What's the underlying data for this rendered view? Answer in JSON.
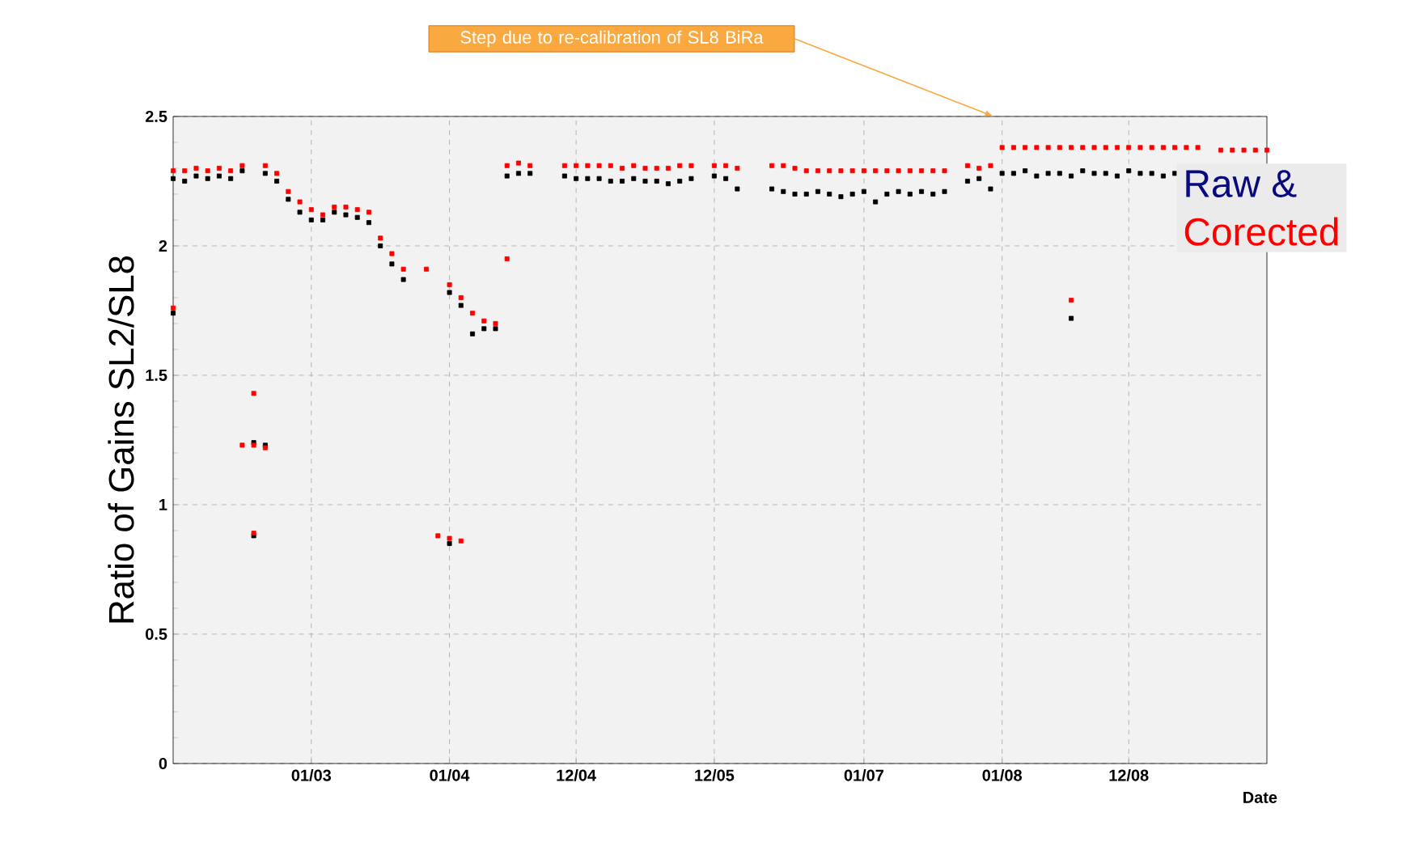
{
  "chart_data": {
    "type": "scatter",
    "ylabel": "Ratio of Gains SL2/SL8",
    "xlabel": "Date",
    "annotations": [
      "Step due to re-calibration of SL8 BiRa",
      "Raw &",
      "Corected"
    ],
    "xlim": [
      "2002-01",
      "2009-12"
    ],
    "ylim": [
      0,
      2.5
    ],
    "xticks": [
      {
        "value": "2003-01",
        "label": "01/03"
      },
      {
        "value": "2004-01",
        "label": "01/04"
      },
      {
        "value": "2004-12",
        "label": "12/04"
      },
      {
        "value": "2005-12",
        "label": "12/05"
      },
      {
        "value": "2007-01",
        "label": "01/07"
      },
      {
        "value": "2008-01",
        "label": "01/08"
      },
      {
        "value": "2008-12",
        "label": "12/08"
      }
    ],
    "yticks": [
      0,
      0.5,
      1,
      1.5,
      2,
      2.5
    ],
    "grid": true,
    "marker": "square",
    "series": [
      {
        "color": "#000000",
        "x": [
          "2002-01",
          "2002-02",
          "2002-03",
          "2002-04",
          "2002-05",
          "2002-06",
          "2002-07",
          "2002-09",
          "2002-10",
          "2002-11",
          "2002-12",
          "2003-01",
          "2003-02",
          "2003-03",
          "2003-04",
          "2003-05",
          "2003-06",
          "2003-07",
          "2003-08",
          "2003-09",
          "2004-01",
          "2004-02",
          "2004-03",
          "2004-04",
          "2004-05",
          "2004-06",
          "2004-07",
          "2004-08",
          "2004-11",
          "2004-12",
          "2005-01",
          "2005-02",
          "2005-03",
          "2005-04",
          "2005-05",
          "2005-06",
          "2005-07",
          "2005-08",
          "2005-09",
          "2005-10",
          "2005-12",
          "2006-01",
          "2006-02",
          "2006-05",
          "2006-06",
          "2006-07",
          "2006-08",
          "2006-09",
          "2006-10",
          "2006-11",
          "2006-12",
          "2007-01",
          "2007-02",
          "2007-03",
          "2007-04",
          "2007-05",
          "2007-06",
          "2007-07",
          "2007-08",
          "2007-10",
          "2007-11",
          "2007-12",
          "2008-01",
          "2008-02",
          "2008-03",
          "2008-04",
          "2008-05",
          "2008-06",
          "2008-07",
          "2008-08",
          "2008-09",
          "2008-10",
          "2008-11",
          "2008-12",
          "2009-01",
          "2009-02",
          "2009-03",
          "2009-04",
          "2002-01",
          "2002-08",
          "2002-08",
          "2002-09",
          "2004-01",
          "2008-07"
        ],
        "values": [
          2.26,
          2.25,
          2.27,
          2.26,
          2.27,
          2.26,
          2.29,
          2.28,
          2.25,
          2.18,
          2.13,
          2.1,
          2.1,
          2.13,
          2.12,
          2.11,
          2.09,
          2.0,
          1.93,
          1.87,
          1.82,
          1.77,
          1.66,
          1.68,
          1.68,
          2.27,
          2.28,
          2.28,
          2.27,
          2.26,
          2.26,
          2.26,
          2.25,
          2.25,
          2.26,
          2.25,
          2.25,
          2.24,
          2.25,
          2.26,
          2.27,
          2.26,
          2.22,
          2.22,
          2.21,
          2.2,
          2.2,
          2.21,
          2.2,
          2.19,
          2.2,
          2.21,
          2.17,
          2.2,
          2.21,
          2.2,
          2.21,
          2.2,
          2.21,
          2.25,
          2.26,
          2.22,
          2.28,
          2.28,
          2.29,
          2.27,
          2.28,
          2.28,
          2.27,
          2.29,
          2.28,
          2.28,
          2.27,
          2.29,
          2.28,
          2.28,
          2.27,
          2.28,
          1.74,
          1.24,
          0.88,
          1.23,
          0.85,
          1.72
        ]
      },
      {
        "color": "#ff0000",
        "x": [
          "2002-01",
          "2002-02",
          "2002-03",
          "2002-04",
          "2002-05",
          "2002-06",
          "2002-07",
          "2002-09",
          "2002-10",
          "2002-11",
          "2002-12",
          "2003-01",
          "2003-02",
          "2003-03",
          "2003-04",
          "2003-05",
          "2003-06",
          "2003-07",
          "2003-08",
          "2003-09",
          "2003-11",
          "2004-01",
          "2004-02",
          "2004-03",
          "2004-04",
          "2004-05",
          "2004-06",
          "2004-06",
          "2004-07",
          "2004-08",
          "2004-11",
          "2004-12",
          "2005-01",
          "2005-02",
          "2005-03",
          "2005-04",
          "2005-05",
          "2005-06",
          "2005-07",
          "2005-08",
          "2005-09",
          "2005-10",
          "2005-12",
          "2006-01",
          "2006-02",
          "2006-05",
          "2006-06",
          "2006-07",
          "2006-08",
          "2006-09",
          "2006-10",
          "2006-11",
          "2006-12",
          "2007-01",
          "2007-02",
          "2007-03",
          "2007-04",
          "2007-05",
          "2007-06",
          "2007-07",
          "2007-08",
          "2007-10",
          "2007-11",
          "2007-12",
          "2008-01",
          "2008-02",
          "2008-03",
          "2008-04",
          "2008-05",
          "2008-06",
          "2008-07",
          "2008-08",
          "2008-09",
          "2008-10",
          "2008-11",
          "2008-12",
          "2009-01",
          "2009-02",
          "2009-03",
          "2009-04",
          "2009-05",
          "2009-06",
          "2009-08",
          "2009-09",
          "2009-10",
          "2009-11",
          "2009-12",
          "2002-01",
          "2002-08",
          "2002-07",
          "2002-08",
          "2002-09",
          "2002-08",
          "2003-12",
          "2004-01",
          "2004-02",
          "2008-07"
        ],
        "values": [
          2.29,
          2.29,
          2.3,
          2.29,
          2.3,
          2.29,
          2.31,
          2.31,
          2.28,
          2.21,
          2.17,
          2.14,
          2.12,
          2.15,
          2.15,
          2.14,
          2.13,
          2.03,
          1.97,
          1.91,
          1.91,
          1.85,
          1.8,
          1.74,
          1.71,
          1.7,
          1.95,
          2.31,
          2.32,
          2.31,
          2.31,
          2.31,
          2.31,
          2.31,
          2.31,
          2.3,
          2.31,
          2.3,
          2.3,
          2.3,
          2.31,
          2.31,
          2.31,
          2.31,
          2.3,
          2.31,
          2.31,
          2.3,
          2.29,
          2.29,
          2.29,
          2.29,
          2.29,
          2.29,
          2.29,
          2.29,
          2.29,
          2.29,
          2.29,
          2.29,
          2.29,
          2.31,
          2.3,
          2.31,
          2.38,
          2.38,
          2.38,
          2.38,
          2.38,
          2.38,
          2.38,
          2.38,
          2.38,
          2.38,
          2.38,
          2.38,
          2.38,
          2.38,
          2.38,
          2.38,
          2.38,
          2.38,
          2.37,
          2.37,
          2.37,
          2.37,
          2.37,
          1.76,
          1.43,
          1.23,
          1.23,
          1.22,
          0.89,
          0.88,
          0.87,
          0.86,
          1.79
        ]
      }
    ]
  }
}
